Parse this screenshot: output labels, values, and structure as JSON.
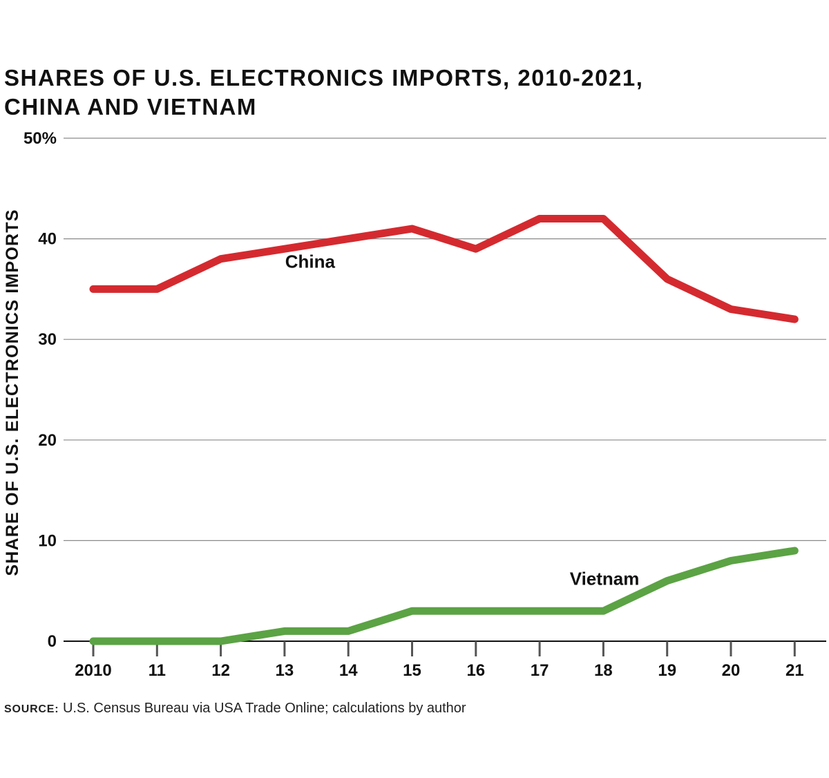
{
  "title_lines": [
    "SHARES OF U.S. ELECTRONICS IMPORTS, 2010-2021,",
    "CHINA AND VIETNAM"
  ],
  "source": {
    "label": "SOURCE:",
    "text": " U.S. Census Bureau via USA Trade Online; calculations by author"
  },
  "chart_data": {
    "type": "line",
    "title": "SHARES OF U.S. ELECTRONICS IMPORTS, 2010-2021, CHINA AND VIETNAM",
    "xlabel": "",
    "ylabel": "SHARE OF U.S. ELECTRONICS IMPORTS",
    "x": [
      2010,
      2011,
      2012,
      2013,
      2014,
      2015,
      2016,
      2017,
      2018,
      2019,
      2020,
      2021
    ],
    "x_tick_labels": [
      "2010",
      "11",
      "12",
      "13",
      "14",
      "15",
      "16",
      "17",
      "18",
      "19",
      "20",
      "21"
    ],
    "y_ticks": [
      0,
      10,
      20,
      30,
      40,
      50
    ],
    "y_tick_labels": [
      "0",
      "10",
      "20",
      "30",
      "40",
      "50%"
    ],
    "ylim": [
      0,
      50
    ],
    "grid": true,
    "series": [
      {
        "name": "China",
        "color": "#d42a2f",
        "values": [
          35,
          35,
          38,
          39,
          40,
          41,
          39,
          42,
          42,
          36,
          33,
          32
        ]
      },
      {
        "name": "Vietnam",
        "color": "#5ba344",
        "values": [
          0,
          0,
          0,
          1,
          1,
          3,
          3,
          3,
          3,
          6,
          8,
          9
        ]
      }
    ]
  }
}
